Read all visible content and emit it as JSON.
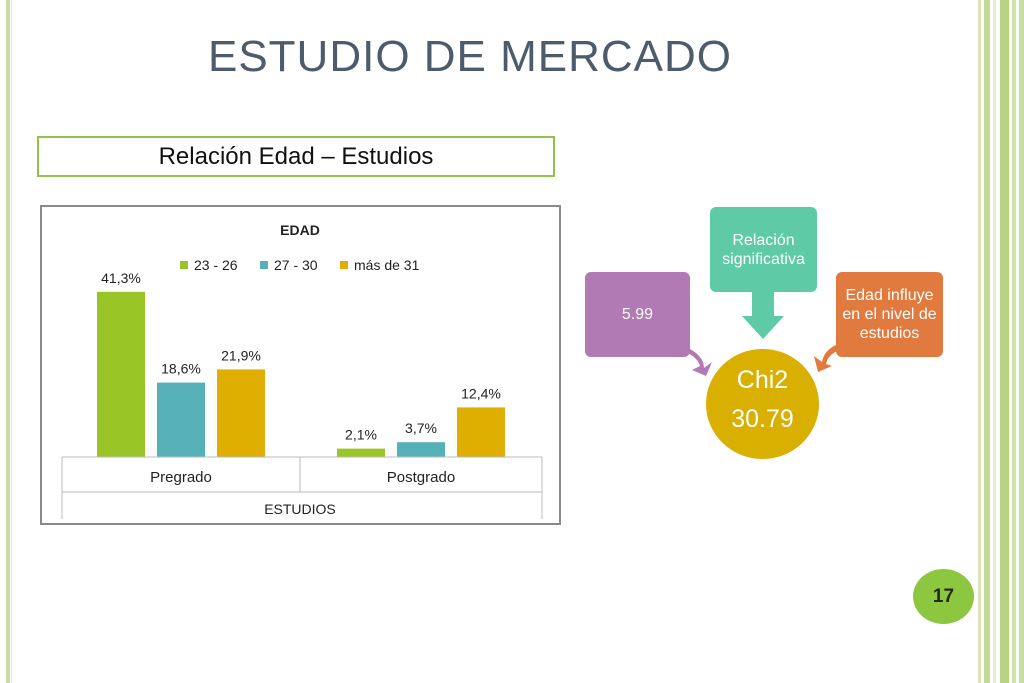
{
  "slide": {
    "title": "ESTUDIO DE MERCADO",
    "subtitle": "Relación Edad – Estudios",
    "page_number": "17"
  },
  "diagram": {
    "relation_label": "Relación significativa",
    "threshold_value": "5.99",
    "conclusion": "Edad influye en el nivel de estudios",
    "center_label": "Chi2",
    "center_value": "30.79"
  },
  "colors": {
    "series_1": "#99c526",
    "series_2": "#56b0b8",
    "series_3": "#deae00",
    "relation_box": "#5ecaa6",
    "threshold_box": "#b27ab5",
    "conclusion_box": "#e07a3e",
    "center_circle": "#d9b000",
    "accent_green": "#93c34a"
  },
  "chart_data": {
    "type": "bar",
    "title": "EDAD",
    "xlabel": "ESTUDIOS",
    "ylabel": "",
    "categories": [
      "Pregrado",
      "Postgrado"
    ],
    "series": [
      {
        "name": "23 - 26",
        "values": [
          41.3,
          2.1
        ],
        "labels": [
          "41,3%",
          "2,1%"
        ]
      },
      {
        "name": "27 - 30",
        "values": [
          18.6,
          3.7
        ],
        "labels": [
          "18,6%",
          "3,7%"
        ]
      },
      {
        "name": "más de 31",
        "values": [
          21.9,
          12.4
        ],
        "labels": [
          "21,9%",
          "12,4%"
        ]
      }
    ],
    "ylim": [
      0,
      45
    ],
    "grid": false,
    "legend": "top"
  }
}
